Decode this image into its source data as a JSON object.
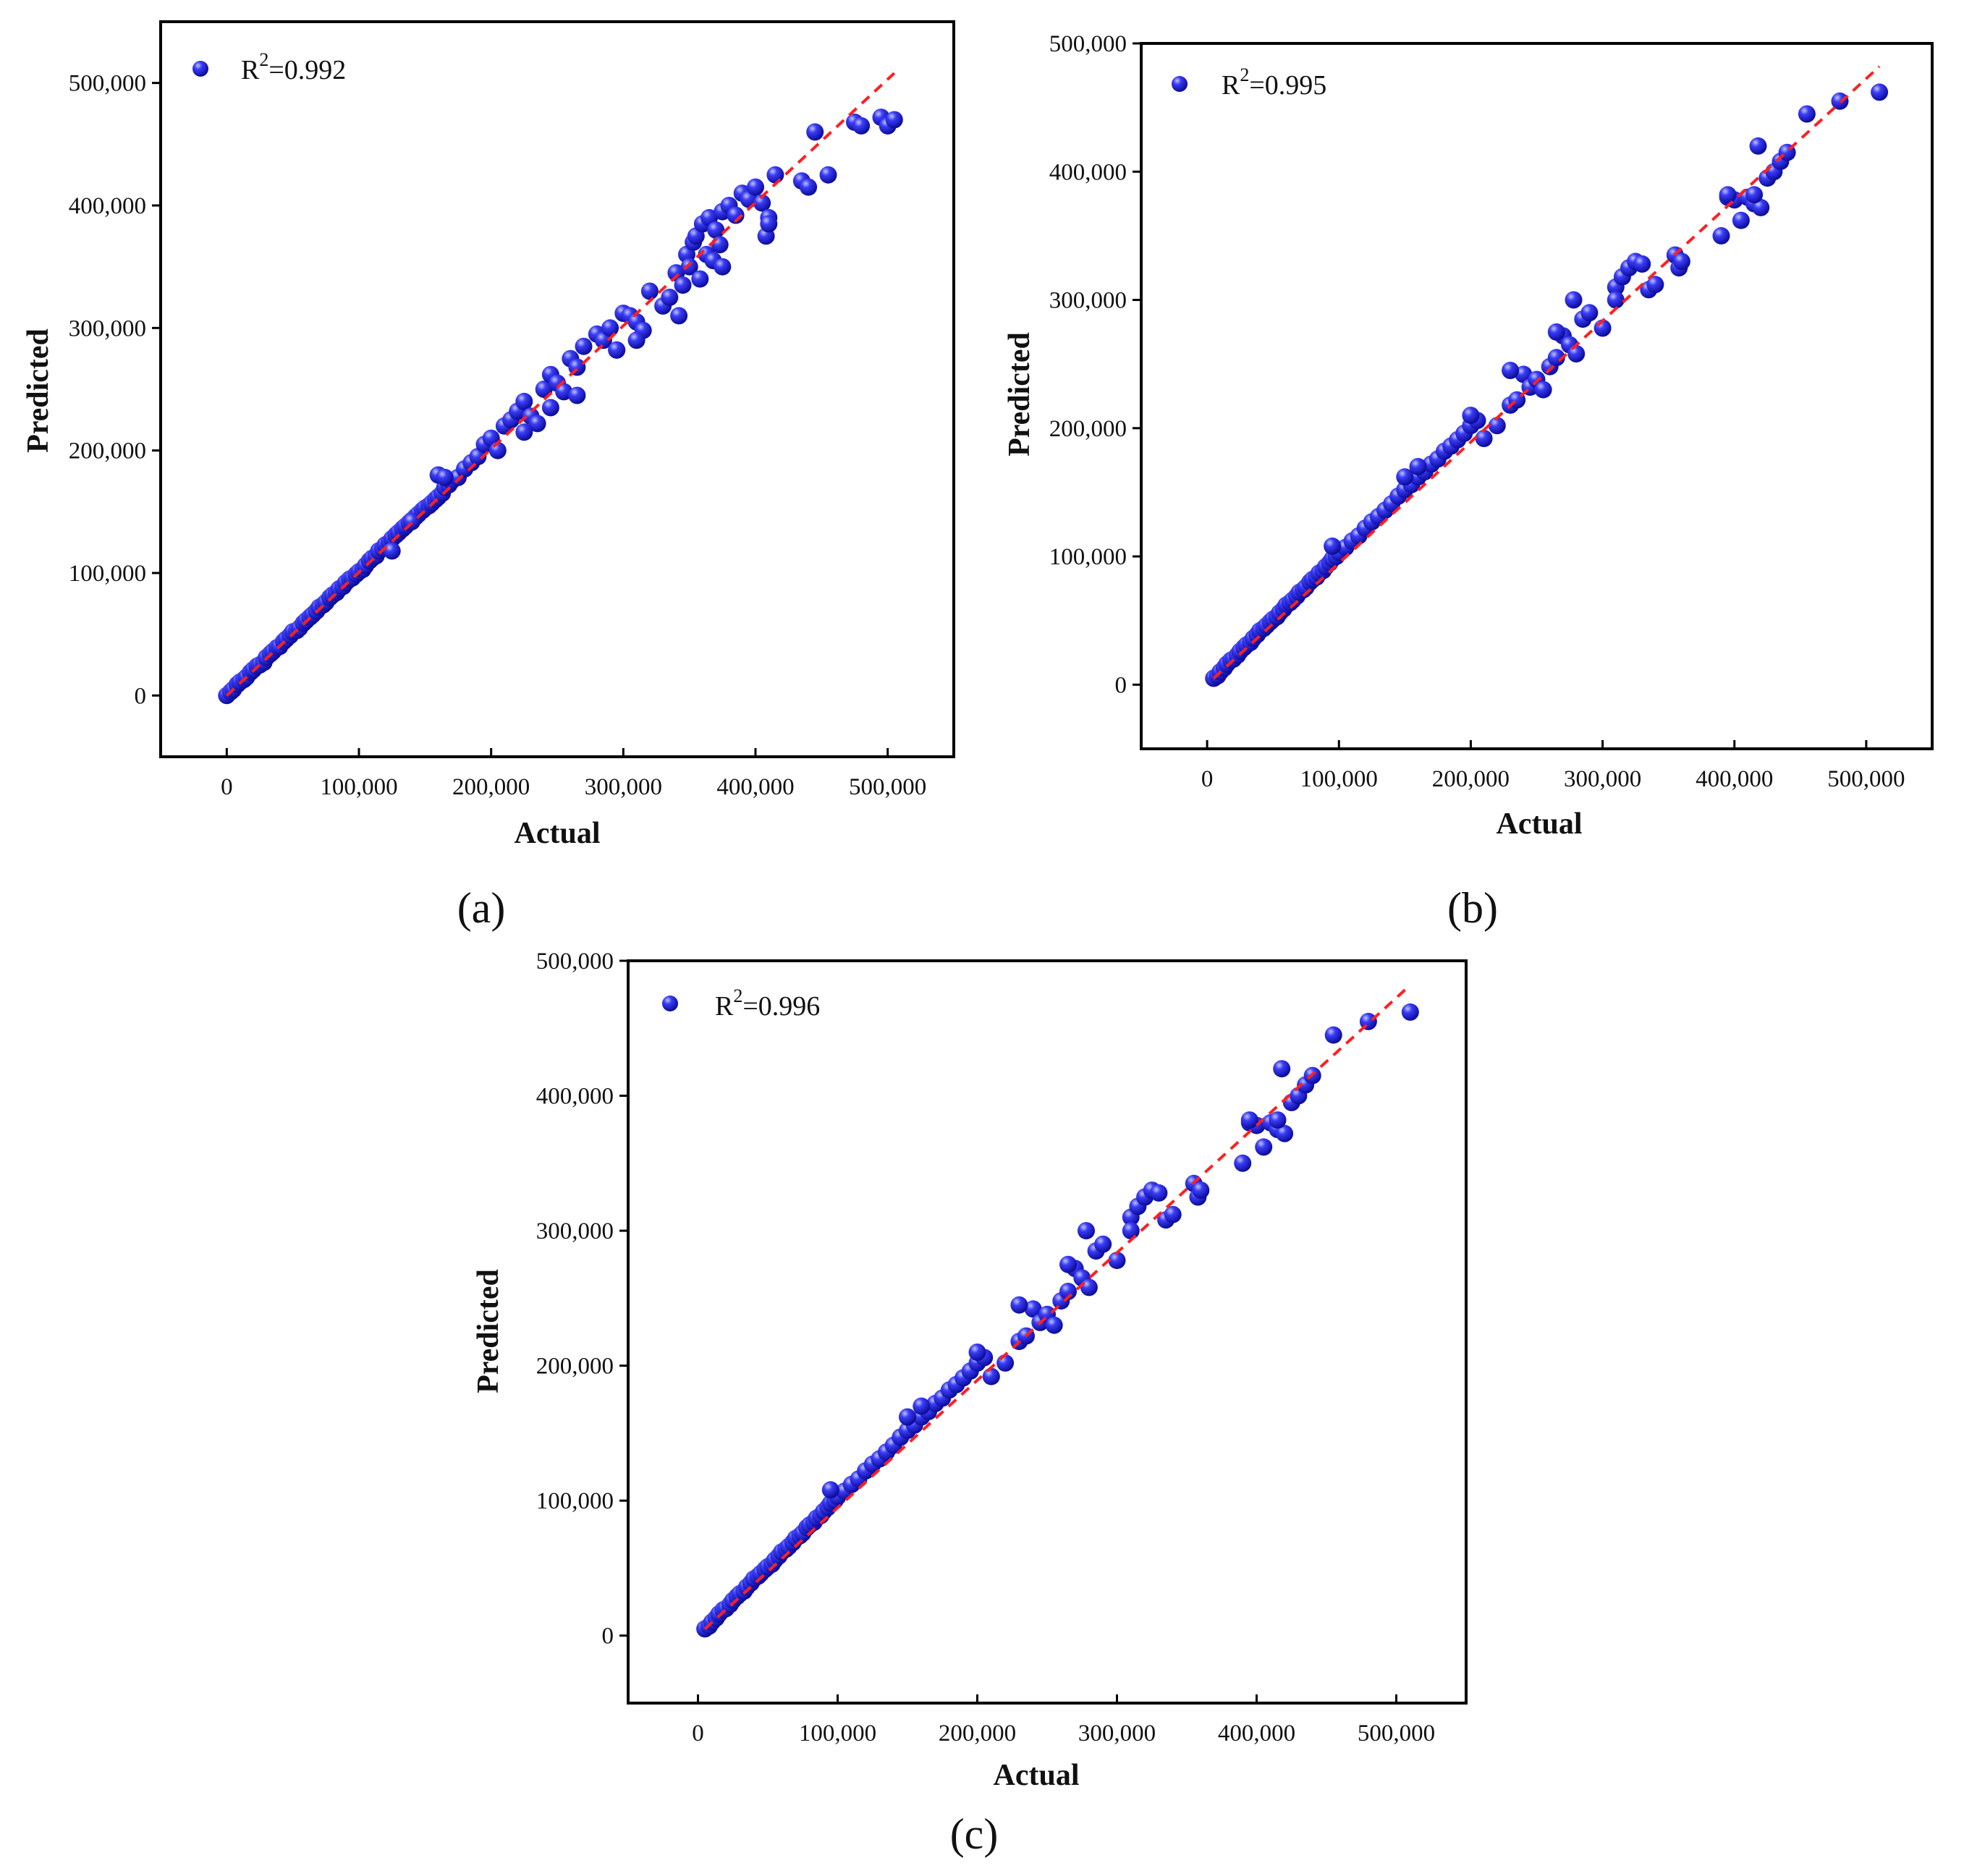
{
  "chart_data": [
    {
      "panel": "(a)",
      "type": "scatter",
      "xlabel": "Actual",
      "ylabel": "Predicted",
      "legend": {
        "marker_label": "R",
        "superscript": "2",
        "value_text": "=0.992",
        "placement": "top-left"
      },
      "xticks": [
        "0",
        "100,000",
        "200,000",
        "300,000",
        "400,000",
        "500,000"
      ],
      "yticks": [
        "0",
        "100,000",
        "200,000",
        "300,000",
        "400,000",
        "500,000"
      ],
      "xlim": [
        -50000,
        550000
      ],
      "ylim": [
        -50000,
        550000
      ],
      "reference_line": {
        "style": "dashed",
        "color": "#ff2020",
        "from": [
          0,
          0
        ],
        "to": [
          505000,
          508000
        ]
      },
      "marker_color": "#1a1ae6",
      "series": [
        {
          "x": [
            0,
            3000,
            5000,
            8000,
            10000,
            13000,
            15000,
            18000,
            20000,
            23000,
            25000,
            28000,
            30000,
            33000,
            35000,
            38000,
            40000,
            43000,
            45000,
            48000,
            50000,
            53000,
            55000,
            58000,
            60000,
            63000,
            65000,
            68000,
            70000,
            73000,
            75000,
            78000,
            80000,
            83000,
            85000,
            88000,
            90000,
            93000,
            95000,
            98000,
            100000,
            103000,
            105000,
            108000,
            110000,
            113000,
            115000,
            118000,
            120000,
            123000,
            125000,
            128000,
            130000,
            133000,
            135000,
            138000,
            140000,
            143000,
            145000,
            148000,
            150000,
            153000,
            155000,
            158000,
            160000,
            163000,
            165000,
            168000,
            170000,
            175000,
            180000,
            185000,
            190000,
            195000,
            200000,
            205000,
            210000,
            215000,
            220000,
            225000,
            230000,
            235000,
            240000,
            245000,
            250000,
            255000,
            260000,
            265000,
            270000,
            280000,
            285000,
            290000,
            295000,
            300000,
            305000,
            310000,
            315000,
            320000,
            330000,
            335000,
            340000,
            342000,
            345000,
            348000,
            350000,
            353000,
            355000,
            358000,
            360000,
            363000,
            365000,
            368000,
            370000,
            373000,
            375000,
            380000,
            385000,
            390000,
            395000,
            400000,
            405000,
            408000,
            410000,
            415000,
            435000,
            440000,
            445000,
            455000,
            475000,
            480000,
            495000,
            500000,
            505000,
            160000,
            165000,
            140000,
            125000,
            225000,
            245000,
            265000,
            295000,
            310000,
            375000,
            410000
          ],
          "y": [
            0,
            3000,
            5000,
            9000,
            11000,
            13000,
            15000,
            19000,
            21000,
            24000,
            25000,
            27000,
            31000,
            34000,
            36000,
            39000,
            40000,
            44000,
            46000,
            49000,
            52000,
            53000,
            55000,
            59000,
            61000,
            64000,
            66000,
            69000,
            72000,
            74000,
            76000,
            80000,
            82000,
            84000,
            87000,
            89000,
            92000,
            95000,
            96000,
            99000,
            101000,
            103000,
            106000,
            110000,
            112000,
            114000,
            118000,
            120000,
            123000,
            125000,
            128000,
            131000,
            133000,
            136000,
            138000,
            141000,
            143000,
            146000,
            148000,
            151000,
            153000,
            155000,
            157000,
            160000,
            162000,
            165000,
            170000,
            172000,
            175000,
            178000,
            185000,
            190000,
            195000,
            205000,
            210000,
            200000,
            220000,
            225000,
            232000,
            240000,
            228000,
            222000,
            250000,
            262000,
            255000,
            248000,
            275000,
            268000,
            285000,
            295000,
            290000,
            300000,
            282000,
            312000,
            310000,
            305000,
            298000,
            330000,
            318000,
            325000,
            345000,
            310000,
            335000,
            360000,
            350000,
            370000,
            375000,
            340000,
            385000,
            360000,
            390000,
            355000,
            380000,
            368000,
            395000,
            400000,
            392000,
            410000,
            405000,
            415000,
            402000,
            375000,
            390000,
            425000,
            420000,
            415000,
            460000,
            425000,
            468000,
            465000,
            472000,
            465000,
            470000,
            180000,
            178000,
            142000,
            118000,
            215000,
            235000,
            245000,
            282000,
            290000,
            350000,
            385000
          ]
        }
      ]
    },
    {
      "panel": "(b)",
      "type": "scatter",
      "xlabel": "Actual",
      "ylabel": "Predicted",
      "legend": {
        "marker_label": "R",
        "superscript": "2",
        "value_text": "=0.995",
        "placement": "top-left"
      },
      "xticks": [
        "0",
        "100,000",
        "200,000",
        "300,000",
        "400,000",
        "500,000"
      ],
      "yticks": [
        "0",
        "100,000",
        "200,000",
        "300,000",
        "400,000",
        "500,000"
      ],
      "xlim": [
        -50000,
        550000
      ],
      "ylim": [
        -50000,
        500000
      ],
      "reference_line": {
        "style": "dashed",
        "color": "#ff2020",
        "from": [
          5000,
          5000
        ],
        "to": [
          510000,
          482000
        ]
      },
      "marker_color": "#1a1ae6",
      "series": [
        {
          "x": [
            5000,
            8000,
            10000,
            13000,
            15000,
            18000,
            20000,
            23000,
            25000,
            28000,
            30000,
            33000,
            35000,
            38000,
            40000,
            43000,
            45000,
            48000,
            50000,
            53000,
            55000,
            58000,
            60000,
            63000,
            65000,
            68000,
            70000,
            73000,
            75000,
            78000,
            80000,
            83000,
            85000,
            88000,
            90000,
            93000,
            95000,
            98000,
            100000,
            105000,
            110000,
            115000,
            120000,
            125000,
            130000,
            135000,
            140000,
            145000,
            150000,
            155000,
            160000,
            165000,
            170000,
            175000,
            180000,
            185000,
            190000,
            195000,
            200000,
            205000,
            210000,
            220000,
            230000,
            235000,
            240000,
            245000,
            250000,
            255000,
            260000,
            265000,
            270000,
            275000,
            278000,
            280000,
            285000,
            290000,
            300000,
            310000,
            315000,
            320000,
            325000,
            330000,
            335000,
            355000,
            358000,
            360000,
            390000,
            395000,
            400000,
            405000,
            410000,
            415000,
            418000,
            420000,
            425000,
            430000,
            435000,
            440000,
            455000,
            480000,
            510000,
            95000,
            150000,
            160000,
            200000,
            230000,
            265000,
            310000,
            340000,
            395000,
            415000
          ],
          "y": [
            5000,
            7000,
            10000,
            13000,
            16000,
            19000,
            20000,
            23000,
            26000,
            29000,
            31000,
            33000,
            36000,
            39000,
            42000,
            44000,
            46000,
            49000,
            51000,
            53000,
            56000,
            59000,
            62000,
            64000,
            66000,
            69000,
            72000,
            74000,
            76000,
            80000,
            82000,
            84000,
            87000,
            89000,
            92000,
            95000,
            98000,
            100000,
            103000,
            107000,
            112000,
            116000,
            122000,
            127000,
            131000,
            136000,
            141000,
            147000,
            152000,
            156000,
            162000,
            166000,
            172000,
            176000,
            182000,
            186000,
            191000,
            196000,
            202000,
            206000,
            192000,
            202000,
            218000,
            222000,
            242000,
            232000,
            238000,
            230000,
            248000,
            255000,
            272000,
            265000,
            300000,
            258000,
            285000,
            290000,
            278000,
            310000,
            318000,
            325000,
            330000,
            328000,
            308000,
            335000,
            325000,
            330000,
            350000,
            380000,
            378000,
            362000,
            380000,
            375000,
            420000,
            372000,
            395000,
            400000,
            408000,
            415000,
            445000,
            455000,
            462000,
            108000,
            162000,
            170000,
            210000,
            245000,
            275000,
            300000,
            312000,
            382000,
            382000
          ]
        }
      ]
    },
    {
      "panel": "(c)",
      "type": "scatter",
      "xlabel": "Actual",
      "ylabel": "Predicted",
      "legend": {
        "marker_label": "R",
        "superscript": "2",
        "value_text": "=0.996",
        "placement": "top-left"
      },
      "xticks": [
        "0",
        "100,000",
        "200,000",
        "300,000",
        "400,000",
        "500,000"
      ],
      "yticks": [
        "0",
        "100,000",
        "200,000",
        "300,000",
        "400,000",
        "500,000"
      ],
      "xlim": [
        -50000,
        550000
      ],
      "ylim": [
        -50000,
        500000
      ],
      "reference_line": {
        "style": "dashed",
        "color": "#ff2020",
        "from": [
          5000,
          5000
        ],
        "to": [
          510000,
          482000
        ]
      },
      "marker_color": "#1a1ae6",
      "series": [
        {
          "x": [
            5000,
            8000,
            10000,
            13000,
            15000,
            18000,
            20000,
            23000,
            25000,
            28000,
            30000,
            33000,
            35000,
            38000,
            40000,
            43000,
            45000,
            48000,
            50000,
            53000,
            55000,
            58000,
            60000,
            63000,
            65000,
            68000,
            70000,
            73000,
            75000,
            78000,
            80000,
            83000,
            85000,
            88000,
            90000,
            93000,
            95000,
            98000,
            100000,
            105000,
            110000,
            115000,
            120000,
            125000,
            130000,
            135000,
            140000,
            145000,
            150000,
            155000,
            160000,
            165000,
            170000,
            175000,
            180000,
            185000,
            190000,
            195000,
            200000,
            205000,
            210000,
            220000,
            230000,
            235000,
            240000,
            245000,
            250000,
            255000,
            260000,
            265000,
            270000,
            275000,
            278000,
            280000,
            285000,
            290000,
            300000,
            310000,
            315000,
            320000,
            325000,
            330000,
            335000,
            355000,
            358000,
            360000,
            390000,
            395000,
            400000,
            405000,
            410000,
            415000,
            418000,
            420000,
            425000,
            430000,
            435000,
            440000,
            455000,
            480000,
            510000,
            95000,
            150000,
            160000,
            200000,
            230000,
            265000,
            310000,
            340000,
            395000,
            415000
          ],
          "y": [
            5000,
            7000,
            10000,
            13000,
            16000,
            19000,
            20000,
            23000,
            26000,
            29000,
            31000,
            33000,
            36000,
            39000,
            42000,
            44000,
            46000,
            49000,
            51000,
            53000,
            56000,
            59000,
            62000,
            64000,
            66000,
            69000,
            72000,
            74000,
            76000,
            80000,
            82000,
            84000,
            87000,
            89000,
            92000,
            95000,
            98000,
            100000,
            103000,
            107000,
            112000,
            116000,
            122000,
            127000,
            131000,
            136000,
            141000,
            147000,
            152000,
            156000,
            162000,
            166000,
            172000,
            176000,
            182000,
            186000,
            191000,
            196000,
            202000,
            206000,
            192000,
            202000,
            218000,
            222000,
            242000,
            232000,
            238000,
            230000,
            248000,
            255000,
            272000,
            265000,
            300000,
            258000,
            285000,
            290000,
            278000,
            310000,
            318000,
            325000,
            330000,
            328000,
            308000,
            335000,
            325000,
            330000,
            350000,
            380000,
            378000,
            362000,
            380000,
            375000,
            420000,
            372000,
            395000,
            400000,
            408000,
            415000,
            445000,
            455000,
            462000,
            108000,
            162000,
            170000,
            210000,
            245000,
            275000,
            300000,
            312000,
            382000,
            382000
          ]
        }
      ]
    }
  ]
}
